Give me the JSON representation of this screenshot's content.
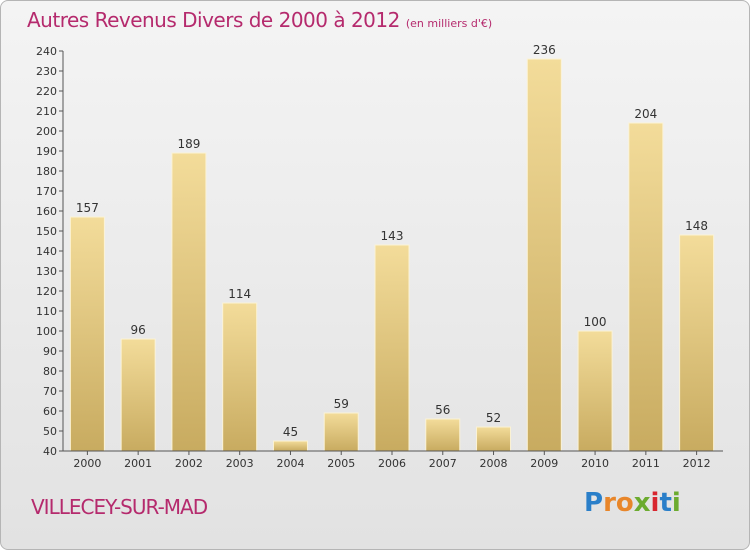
{
  "header": {
    "title": "Autres Revenus Divers de 2000 à 2012",
    "subtitle": "(en milliers d'€)"
  },
  "footer": {
    "commune": "VILLECEY-SUR-MAD",
    "logo_text": "Proxiti"
  },
  "colors": {
    "title": "#b52a6d",
    "bar_light": "#f3dc9a",
    "bar_dark": "#c8ab60",
    "bar_edge": "#fbf3d6"
  },
  "chart_data": {
    "type": "bar",
    "title": "Autres Revenus Divers de 2000 à 2012",
    "subtitle": "(en milliers d'€)",
    "categories": [
      "2000",
      "2001",
      "2002",
      "2003",
      "2004",
      "2005",
      "2006",
      "2007",
      "2008",
      "2009",
      "2010",
      "2011",
      "2012"
    ],
    "values": [
      157,
      96,
      189,
      114,
      45,
      59,
      143,
      56,
      52,
      236,
      100,
      204,
      148
    ],
    "ylim": [
      40,
      240
    ],
    "ytick_step": 10,
    "grid": false,
    "legend": "none"
  }
}
